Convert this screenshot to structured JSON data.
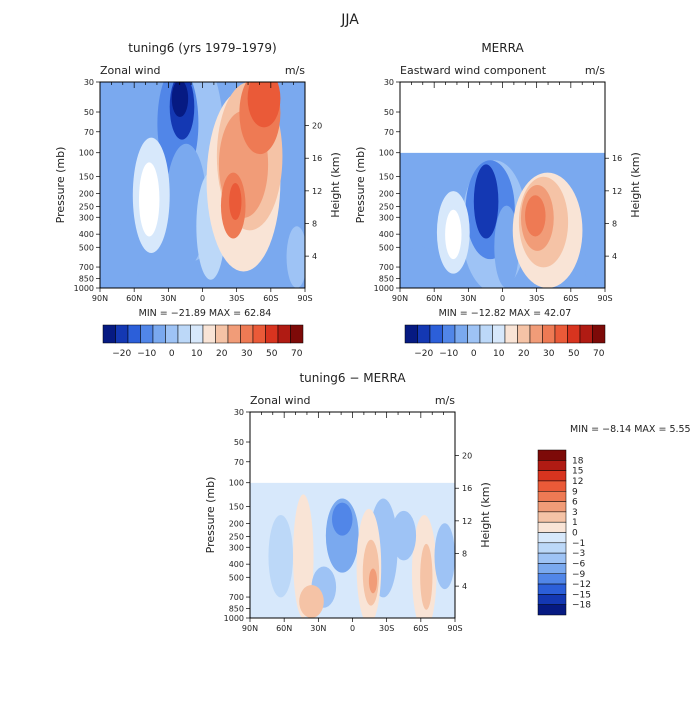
{
  "figure": {
    "title": "JJA"
  },
  "colors": {
    "red": [
      "#f9e4d6",
      "#f5c3a6",
      "#f19c78",
      "#ee7a54",
      "#ea5a38",
      "#d8341f",
      "#b01b13",
      "#7d0a08"
    ],
    "blue": [
      "#d7e8fb",
      "#bcd8f8",
      "#9ec3f5",
      "#7aa9ef",
      "#5186e8",
      "#2c5fd9",
      "#1438b3",
      "#061a82"
    ]
  },
  "chart_data": [
    {
      "type": "heatmap",
      "title": "tuning6 (yrs 1979–1979)",
      "variable": "Zonal wind",
      "units": "m/s",
      "ylabel": "Pressure (mb)",
      "y2label": "Height (km)",
      "x_ticks": [
        "90N",
        "60N",
        "30N",
        "0",
        "30S",
        "60S",
        "90S"
      ],
      "pressure_ticks": [
        30,
        50,
        70,
        100,
        150,
        200,
        250,
        300,
        400,
        500,
        700,
        850,
        1000
      ],
      "height_ticks": [
        4,
        8,
        12,
        16,
        20
      ],
      "data_top_mb": 30,
      "stats": "MIN =  −21.89   MAX =  62.84",
      "min": -21.89,
      "max": 62.84,
      "colorbar_levels": [
        -20,
        -10,
        0,
        10,
        20,
        30,
        50,
        70
      ],
      "colorbar_labels": [
        "−20",
        "−10",
        "0",
        "10",
        "20",
        "30",
        "50",
        "70"
      ],
      "colorbar_position": "below"
    },
    {
      "type": "heatmap",
      "title": "MERRA",
      "variable": "Eastward wind component",
      "units": "m/s",
      "ylabel": "Pressure (mb)",
      "y2label": "Height (km)",
      "x_ticks": [
        "90N",
        "60N",
        "30N",
        "0",
        "30S",
        "60S",
        "90S"
      ],
      "pressure_ticks": [
        30,
        50,
        70,
        100,
        150,
        200,
        250,
        300,
        400,
        500,
        700,
        850,
        1000
      ],
      "height_ticks": [
        4,
        8,
        12,
        16
      ],
      "data_top_mb": 100,
      "stats": "MIN =  −12.82   MAX =  42.07",
      "min": -12.82,
      "max": 42.07,
      "colorbar_levels": [
        -20,
        -10,
        0,
        10,
        20,
        30,
        50,
        70
      ],
      "colorbar_labels": [
        "−20",
        "−10",
        "0",
        "10",
        "20",
        "30",
        "50",
        "70"
      ],
      "colorbar_position": "below"
    },
    {
      "type": "heatmap",
      "title": "tuning6 − MERRA",
      "variable": "Zonal wind",
      "units": "m/s",
      "ylabel": "Pressure (mb)",
      "y2label": "Height (km)",
      "x_ticks": [
        "90N",
        "60N",
        "30N",
        "0",
        "30S",
        "60S",
        "90S"
      ],
      "pressure_ticks": [
        30,
        50,
        70,
        100,
        150,
        200,
        250,
        300,
        400,
        500,
        700,
        850,
        1000
      ],
      "height_ticks": [
        4,
        8,
        12,
        16,
        20
      ],
      "data_top_mb": 100,
      "stats": "MIN =   −8.14   MAX =    5.55",
      "min": -8.14,
      "max": 5.55,
      "colorbar_levels": [
        18,
        15,
        12,
        9,
        6,
        3,
        1,
        0,
        -1,
        -3,
        -6,
        -9,
        -12,
        -15,
        -18
      ],
      "colorbar_labels": [
        "18",
        "15",
        "12",
        "9",
        "6",
        "3",
        "1",
        "0",
        "−1",
        "−3",
        "−6",
        "−9",
        "−12",
        "−15",
        "−18"
      ],
      "colorbar_position": "right"
    }
  ]
}
